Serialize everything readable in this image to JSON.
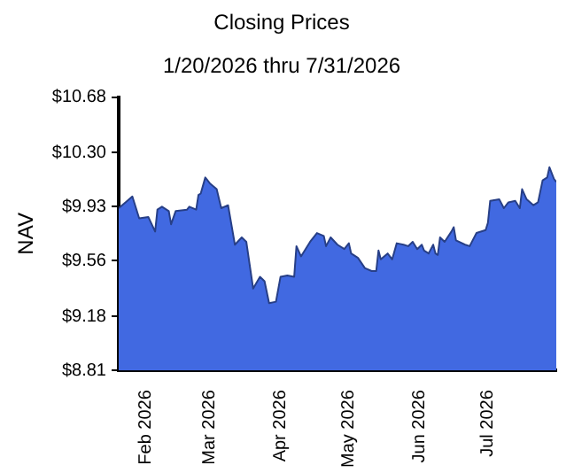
{
  "chart_data": {
    "type": "area",
    "title": "Closing Prices",
    "subtitle": "1/20/2026 thru 7/31/2026",
    "ylabel": "NAV",
    "x": [
      "2026-01-20",
      "2026-01-23",
      "2026-01-26",
      "2026-01-29",
      "2026-02-02",
      "2026-02-05",
      "2026-02-06",
      "2026-02-08",
      "2026-02-11",
      "2026-02-12",
      "2026-02-14",
      "2026-02-19",
      "2026-02-20",
      "2026-02-23",
      "2026-02-24",
      "2026-02-25",
      "2026-02-27",
      "2026-03-01",
      "2026-03-04",
      "2026-03-06",
      "2026-03-09",
      "2026-03-12",
      "2026-03-15",
      "2026-03-17",
      "2026-03-20",
      "2026-03-23",
      "2026-03-25",
      "2026-03-27",
      "2026-03-30",
      "2026-04-01",
      "2026-04-04",
      "2026-04-07",
      "2026-04-08",
      "2026-04-10",
      "2026-04-14",
      "2026-04-17",
      "2026-04-20",
      "2026-04-21",
      "2026-04-23",
      "2026-04-26",
      "2026-04-29",
      "2026-05-01",
      "2026-05-02",
      "2026-05-05",
      "2026-05-08",
      "2026-05-11",
      "2026-05-13",
      "2026-05-14",
      "2026-05-15",
      "2026-05-18",
      "2026-05-20",
      "2026-05-22",
      "2026-05-25",
      "2026-05-27",
      "2026-05-29",
      "2026-05-31",
      "2026-06-02",
      "2026-06-03",
      "2026-06-05",
      "2026-06-07",
      "2026-06-08",
      "2026-06-09",
      "2026-06-10",
      "2026-06-12",
      "2026-06-15",
      "2026-06-16",
      "2026-06-17",
      "2026-06-21",
      "2026-06-23",
      "2026-06-26",
      "2026-06-30",
      "2026-07-01",
      "2026-07-02",
      "2026-07-06",
      "2026-07-08",
      "2026-07-10",
      "2026-07-13",
      "2026-07-15",
      "2026-07-16",
      "2026-07-18",
      "2026-07-21",
      "2026-07-23",
      "2026-07-25",
      "2026-07-27",
      "2026-07-28",
      "2026-07-30",
      "2026-07-31"
    ],
    "series": [
      {
        "color": "#4169e1",
        "values": [
          9.92,
          9.96,
          10.0,
          9.85,
          9.86,
          9.76,
          9.91,
          9.93,
          9.9,
          9.81,
          9.9,
          9.91,
          9.93,
          9.91,
          10.01,
          10.02,
          10.13,
          10.09,
          10.05,
          9.92,
          9.94,
          9.67,
          9.72,
          9.69,
          9.37,
          9.45,
          9.42,
          9.27,
          9.28,
          9.45,
          9.46,
          9.45,
          9.66,
          9.59,
          9.69,
          9.75,
          9.73,
          9.66,
          9.72,
          9.67,
          9.64,
          9.68,
          9.61,
          9.58,
          9.51,
          9.49,
          9.49,
          9.63,
          9.57,
          9.61,
          9.57,
          9.68,
          9.67,
          9.66,
          9.69,
          9.64,
          9.67,
          9.63,
          9.61,
          9.67,
          9.61,
          9.6,
          9.72,
          9.69,
          9.76,
          9.79,
          9.7,
          9.67,
          9.66,
          9.75,
          9.77,
          9.82,
          9.97,
          9.98,
          9.92,
          9.96,
          9.97,
          9.92,
          10.05,
          9.98,
          9.94,
          9.96,
          10.11,
          10.13,
          10.2,
          10.12,
          10.1
        ]
      }
    ],
    "xlim": [
      "2026-01-20",
      "2026-07-31"
    ],
    "xticks": [
      {
        "value": "2026-02-01",
        "label": "Feb 2026"
      },
      {
        "value": "2026-03-01",
        "label": "Mar 2026"
      },
      {
        "value": "2026-04-01",
        "label": "Apr 2026"
      },
      {
        "value": "2026-05-01",
        "label": "May 2026"
      },
      {
        "value": "2026-06-01",
        "label": "Jun 2026"
      },
      {
        "value": "2026-07-01",
        "label": "Jul 2026"
      }
    ],
    "ylim": [
      8.81,
      10.68
    ],
    "yticks": [
      {
        "value": 8.81,
        "label": "$8.81"
      },
      {
        "value": 9.18,
        "label": "$9.18"
      },
      {
        "value": 9.56,
        "label": "$9.56"
      },
      {
        "value": 9.93,
        "label": "$9.93"
      },
      {
        "value": 10.3,
        "label": "$10.30"
      },
      {
        "value": 10.68,
        "label": "$10.68"
      }
    ],
    "grid": false,
    "legend": false
  }
}
